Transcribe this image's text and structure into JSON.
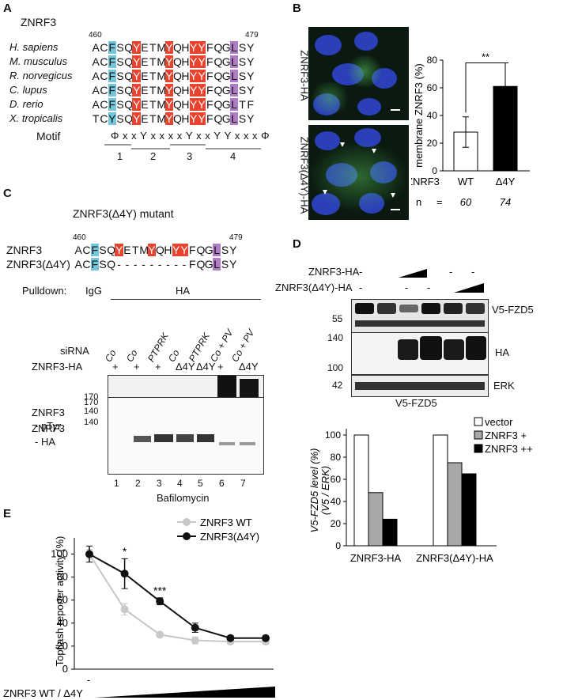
{
  "panels": {
    "a": "A",
    "b": "B",
    "c": "C",
    "d": "D",
    "e": "E"
  },
  "panel_a": {
    "title": "ZNRF3",
    "start_num": "460",
    "end_num": "479",
    "rows": [
      {
        "species": "H. sapiens",
        "seq": "ACFSQYETMYQHYYFQGLSY"
      },
      {
        "species": "M. musculus",
        "seq": "ACFSQYETMYQHYYFQGLSY"
      },
      {
        "species": "R. norvegicus",
        "seq": "ACFSQYETMYQHYYFQGLSY"
      },
      {
        "species": "C. lupus",
        "seq": "ACFSQYETMYQHYYFQGLSY"
      },
      {
        "species": "D. rerio",
        "seq": "ACFSQYETMYQHYYFQGLTF"
      },
      {
        "species": "X. tropicalis",
        "seq": "TCYSQYETMYQHYYFQGLSY"
      }
    ],
    "motif_label": "Motif",
    "motif_seq": "ΦxxYxxxxYxxYYxxxΦ",
    "motif_groups": [
      "1",
      "2",
      "3",
      "4"
    ],
    "highlight_colors": {
      "tyrosine": "#e8432e",
      "cyan": "#74c6dd",
      "purple": "#b07cc6"
    }
  },
  "panel_b": {
    "image_labels": [
      "ZNRF3-HA",
      "ZNRF3(Δ4Y)-HA"
    ],
    "chart_data": {
      "type": "bar",
      "categories": [
        "WT",
        "Δ4Y"
      ],
      "values": [
        28,
        61
      ],
      "errors": [
        11,
        17
      ],
      "ylabel": "membrane ZNRF3 (%)",
      "ylim": [
        0,
        80
      ],
      "yticks": [
        "0",
        "20",
        "40",
        "60",
        "80"
      ],
      "significance": "**",
      "row_label": "ZNRF3",
      "n_label": "n",
      "n_eq": "=",
      "n_values": [
        "60",
        "74"
      ],
      "bar_colors": [
        "#ffffff",
        "#000000"
      ]
    }
  },
  "panel_c": {
    "title": "ZNRF3(Δ4Y) mutant",
    "start_num": "460",
    "end_num": "479",
    "wt_label": "ZNRF3",
    "wt_seq": "ACFSQYETMYQHYYFQGLSY",
    "mut_label": "ZNRF3(Δ4Y)",
    "mut_seq": "ACFSQ---------FQGLSY",
    "pulldown_label": "Pulldown:",
    "pulldown_igg": "IgG",
    "pulldown_ha": "HA",
    "sirna_label": "siRNA",
    "sirna": [
      "Co",
      "Co",
      "PTPRK",
      "Co",
      "PTPRK",
      "Co + PV",
      "Co + PV"
    ],
    "construct_label": "ZNRF3-HA",
    "construct": [
      "+",
      "+",
      "+",
      "Δ4Y",
      "Δ4Y",
      "+",
      "Δ4Y"
    ],
    "blot1_label": [
      "ZNRF3",
      "- pTyr"
    ],
    "blot2_label": [
      "ZNRF3",
      "- HA"
    ],
    "mw1": [
      "170",
      "140"
    ],
    "mw2": [
      "170",
      "140"
    ],
    "lanes": [
      "1",
      "2",
      "3",
      "4",
      "5",
      "6",
      "7"
    ],
    "footer": "Bafilomycin"
  },
  "panel_d": {
    "dash": "-",
    "row1_label": "ZNRF3-HA",
    "row2_label": "ZNRF3(Δ4Y)-HA",
    "blots": [
      {
        "label": "V5-FZD5",
        "mw": [
          "55"
        ]
      },
      {
        "label": "HA",
        "mw": [
          "140",
          "100"
        ]
      },
      {
        "label": "ERK",
        "mw": [
          "42"
        ]
      }
    ],
    "blot_caption": "V5-FZD5",
    "chart_data": {
      "type": "bar",
      "categories": [
        "ZNRF3-HA",
        "ZNRF3(Δ4Y)-HA"
      ],
      "series": [
        {
          "name": "vector",
          "values": [
            100,
            100
          ],
          "color": "#ffffff"
        },
        {
          "name": "ZNRF3 +",
          "values": [
            48,
            75
          ],
          "color": "#a8a8a8"
        },
        {
          "name": "ZNRF3 ++",
          "values": [
            24,
            65
          ],
          "color": "#000000"
        }
      ],
      "ylabel": "V5-FZD5 level (%)",
      "ylabel2": "(V5 / ERK)",
      "ylim": [
        0,
        100
      ],
      "yticks": [
        "0",
        "20",
        "40",
        "60",
        "80",
        "100"
      ],
      "legend_position": "top-right"
    }
  },
  "panel_e": {
    "chart_data": {
      "type": "line",
      "x": [
        1,
        2,
        3,
        4,
        5,
        6
      ],
      "series": [
        {
          "name": "ZNRF3 WT",
          "values": [
            100,
            52,
            30,
            25,
            24,
            24
          ],
          "errors": [
            4,
            5,
            2,
            3,
            2,
            2
          ],
          "color": "#c8c8c8"
        },
        {
          "name": "ZNRF3(Δ4Y)",
          "values": [
            100,
            83,
            59,
            36,
            27,
            27
          ],
          "errors": [
            7,
            13,
            3,
            4,
            2,
            2
          ],
          "color": "#111111"
        }
      ],
      "ylabel": "Topflash reporter activity (%)",
      "ylim": [
        0,
        110
      ],
      "yticks": [
        "0",
        "20",
        "40",
        "60",
        "80",
        "100"
      ],
      "annotations": [
        {
          "x": 2,
          "text": "*"
        },
        {
          "x": 3,
          "text": "***"
        }
      ],
      "xlabel": "ZNRF3 WT / Δ4Y",
      "x_first_tick": "-"
    }
  }
}
